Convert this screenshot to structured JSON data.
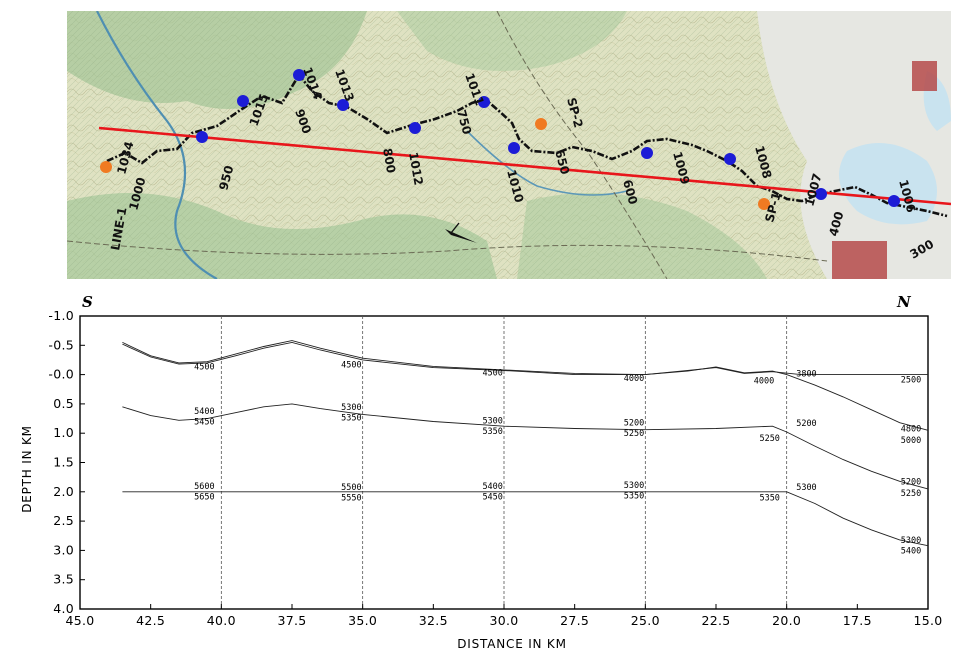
{
  "map": {
    "line_name": "LINE-1",
    "labels": [
      "1034",
      "1000",
      "950",
      "1015",
      "1014",
      "900",
      "1013",
      "1012",
      "800",
      "1011",
      "750",
      "1010",
      "SP-2",
      "650",
      "1009",
      "600",
      "1008",
      "SP-1",
      "400",
      "1007",
      "1006",
      "300"
    ],
    "colors": {
      "profile_line": "#e8161b",
      "station_marker": "#1c1cd6",
      "shot_marker": "#f07a22",
      "route": "#111111"
    },
    "station_marker_count": 12,
    "shot_marker_count": 3
  },
  "chart_data": {
    "type": "line",
    "title": "",
    "end_labels": {
      "left": "S",
      "right": "N"
    },
    "xlabel": "DISTANCE IN KM",
    "ylabel": "DEPTH IN KM",
    "xlim": [
      45.0,
      15.0
    ],
    "ylim": [
      -1.0,
      4.0
    ],
    "x_ticks": [
      "45.0",
      "42.5",
      "40.0",
      "37.5",
      "35.0",
      "32.5",
      "30.0",
      "27.5",
      "25.0",
      "22.5",
      "20.0",
      "17.5",
      "15.0"
    ],
    "y_ticks": [
      "-1.0",
      "-0.5",
      "-0.0",
      "0.5",
      "1.0",
      "1.5",
      "2.0",
      "2.5",
      "3.0",
      "3.5",
      "4.0"
    ],
    "gridlines_x": [
      40.0,
      35.0,
      30.0,
      25.0,
      20.0
    ],
    "series": [
      {
        "x": [
          43.5,
          42.5,
          41.5,
          40.5,
          39.5,
          38.5,
          37.5,
          36.5,
          35.0,
          32.5,
          30.0,
          27.5,
          25.0,
          23.5,
          22.5,
          21.5,
          20.5,
          19.5,
          18.0,
          16.0,
          15.0
        ],
        "y": [
          -0.52,
          -0.3,
          -0.18,
          -0.2,
          -0.32,
          -0.45,
          -0.55,
          -0.42,
          -0.25,
          -0.12,
          -0.07,
          0.0,
          0.0,
          -0.07,
          -0.12,
          -0.02,
          -0.05,
          0.0,
          0.0,
          0.0,
          0.0
        ]
      },
      {
        "x": [
          43.5,
          42.5,
          41.5,
          40.5,
          39.5,
          38.5,
          37.5,
          36.5,
          35.0,
          32.5,
          30.0,
          27.5,
          25.0,
          23.5,
          22.5,
          21.5,
          20.5,
          20.0,
          19.0,
          18.0,
          17.0,
          16.0,
          15.0
        ],
        "y": [
          -0.55,
          -0.32,
          -0.2,
          -0.22,
          -0.35,
          -0.48,
          -0.58,
          -0.45,
          -0.28,
          -0.14,
          -0.08,
          -0.02,
          0.0,
          -0.06,
          -0.13,
          -0.03,
          -0.06,
          0.0,
          0.18,
          0.38,
          0.6,
          0.82,
          0.95
        ]
      },
      {
        "x": [
          43.5,
          42.5,
          41.5,
          40.5,
          39.5,
          38.5,
          37.5,
          36.5,
          35.0,
          32.5,
          30.0,
          27.5,
          25.0,
          22.5,
          20.5,
          20.0,
          19.0,
          18.0,
          17.0,
          16.0,
          15.0
        ],
        "y": [
          0.55,
          0.7,
          0.78,
          0.75,
          0.65,
          0.55,
          0.5,
          0.58,
          0.68,
          0.8,
          0.88,
          0.92,
          0.94,
          0.92,
          0.88,
          0.98,
          1.22,
          1.45,
          1.65,
          1.82,
          1.95
        ]
      },
      {
        "x": [
          43.5,
          40.0,
          35.0,
          30.0,
          25.0,
          20.0,
          19.0,
          18.0,
          17.0,
          16.0,
          15.0
        ],
        "y": [
          2.0,
          2.0,
          2.0,
          2.0,
          2.0,
          2.0,
          2.2,
          2.45,
          2.65,
          2.82,
          2.92
        ]
      }
    ],
    "annotations": [
      {
        "text": "4500",
        "x": 40.6,
        "y": -0.14
      },
      {
        "text": "4500",
        "x": 35.4,
        "y": -0.17
      },
      {
        "text": "4500",
        "x": 30.4,
        "y": -0.04
      },
      {
        "text": "4000",
        "x": 25.4,
        "y": 0.06
      },
      {
        "text": "4000",
        "x": 20.8,
        "y": 0.1
      },
      {
        "text": "3800",
        "x": 19.3,
        "y": -0.02
      },
      {
        "text": "2500",
        "x": 15.6,
        "y": 0.08
      },
      {
        "text": "4800",
        "x": 15.6,
        "y": 0.92
      },
      {
        "text": "5000",
        "x": 15.6,
        "y": 1.12
      },
      {
        "text": "5400",
        "x": 40.6,
        "y": 0.62
      },
      {
        "text": "5450",
        "x": 40.6,
        "y": 0.8
      },
      {
        "text": "5300",
        "x": 35.4,
        "y": 0.55
      },
      {
        "text": "5350",
        "x": 35.4,
        "y": 0.73
      },
      {
        "text": "5300",
        "x": 30.4,
        "y": 0.78
      },
      {
        "text": "5350",
        "x": 30.4,
        "y": 0.96
      },
      {
        "text": "5200",
        "x": 25.4,
        "y": 0.82
      },
      {
        "text": "5250",
        "x": 25.4,
        "y": 1.0
      },
      {
        "text": "5200",
        "x": 19.3,
        "y": 0.83
      },
      {
        "text": "5250",
        "x": 20.6,
        "y": 1.08
      },
      {
        "text": "5200",
        "x": 15.6,
        "y": 1.82
      },
      {
        "text": "5250",
        "x": 15.6,
        "y": 2.02
      },
      {
        "text": "5600",
        "x": 40.6,
        "y": 1.9
      },
      {
        "text": "5650",
        "x": 40.6,
        "y": 2.08
      },
      {
        "text": "5500",
        "x": 35.4,
        "y": 1.92
      },
      {
        "text": "5550",
        "x": 35.4,
        "y": 2.1
      },
      {
        "text": "5400",
        "x": 30.4,
        "y": 1.9
      },
      {
        "text": "5450",
        "x": 30.4,
        "y": 2.08
      },
      {
        "text": "5300",
        "x": 25.4,
        "y": 1.88
      },
      {
        "text": "5350",
        "x": 25.4,
        "y": 2.06
      },
      {
        "text": "5300",
        "x": 19.3,
        "y": 1.92
      },
      {
        "text": "5350",
        "x": 20.6,
        "y": 2.1
      },
      {
        "text": "5300",
        "x": 15.6,
        "y": 2.82
      },
      {
        "text": "5400",
        "x": 15.6,
        "y": 3.0
      }
    ]
  }
}
